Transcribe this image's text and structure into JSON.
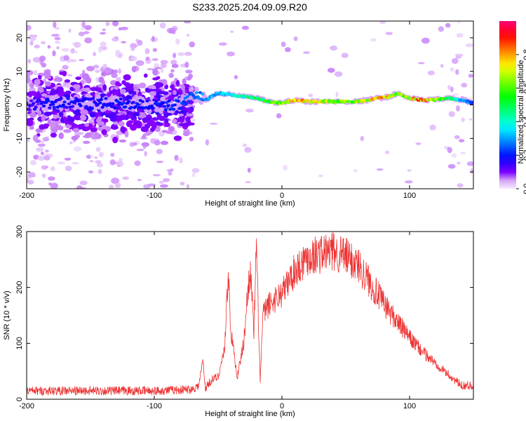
{
  "title": "S233.2025.204.09.09.R20",
  "colors": {
    "snr_line": "#ee3333",
    "axis": "#000000"
  },
  "chart_data": [
    {
      "type": "heatmap",
      "name": "spectrogram",
      "xlabel": "Height of straight line (km)",
      "ylabel": "Frequency (Hz)",
      "xlim": [
        -200,
        150
      ],
      "ylim": [
        -25,
        25
      ],
      "xticks": [
        -200,
        -100,
        0,
        100
      ],
      "yticks": [
        -20,
        -10,
        0,
        10,
        20
      ],
      "grid": false,
      "colorbar": {
        "label": "Normalized spectral amplitude",
        "range": [
          0,
          1
        ],
        "ticks": [
          0.0,
          0.2,
          0.4,
          0.6,
          0.8
        ],
        "colormap": "rainbow (white-violet-blue-cyan-green-yellow-red-magenta)"
      },
      "ridge": {
        "x": [
          -200,
          -180,
          -150,
          -120,
          -100,
          -80,
          -70,
          -60,
          -50,
          -40,
          -30,
          -20,
          -10,
          0,
          10,
          20,
          40,
          60,
          75,
          85,
          90,
          100,
          110,
          120,
          130,
          140,
          150
        ],
        "frequency": [
          0,
          0.5,
          0.5,
          0.3,
          0,
          0,
          3.5,
          1.5,
          3.5,
          3.0,
          2.5,
          2.0,
          1.0,
          0.5,
          1.5,
          1.0,
          1.0,
          1.0,
          2.0,
          2.5,
          3.5,
          2.0,
          1.5,
          1.5,
          2.0,
          1.5,
          0.5
        ],
        "amplitude": [
          0.15,
          0.2,
          0.2,
          0.2,
          0.2,
          0.25,
          0.3,
          0.3,
          0.35,
          0.4,
          0.45,
          0.55,
          0.6,
          0.7,
          0.85,
          0.8,
          0.7,
          0.7,
          0.85,
          0.8,
          0.65,
          0.8,
          0.9,
          0.7,
          0.6,
          0.35,
          0.25
        ]
      }
    },
    {
      "type": "line",
      "name": "snr",
      "xlabel": "Height of straight line (km)",
      "ylabel": "SNR (10 * v/v)",
      "xlim": [
        -200,
        150
      ],
      "ylim": [
        0,
        300
      ],
      "xticks": [
        -200,
        -100,
        0,
        100
      ],
      "yticks": [
        0,
        100,
        200,
        300
      ],
      "grid": false,
      "x": [
        -200,
        -150,
        -100,
        -70,
        -65,
        -62,
        -60,
        -55,
        -50,
        -45,
        -42,
        -40,
        -38,
        -35,
        -30,
        -25,
        -22,
        -20,
        -17,
        -15,
        -10,
        0,
        10,
        20,
        30,
        40,
        50,
        60,
        70,
        80,
        90,
        100,
        110,
        120,
        130,
        140,
        150
      ],
      "values": [
        15,
        15,
        15,
        18,
        25,
        70,
        20,
        35,
        40,
        90,
        230,
        120,
        90,
        40,
        100,
        240,
        120,
        270,
        30,
        150,
        170,
        190,
        230,
        255,
        260,
        265,
        255,
        240,
        205,
        170,
        140,
        110,
        85,
        65,
        45,
        25,
        25
      ]
    }
  ]
}
